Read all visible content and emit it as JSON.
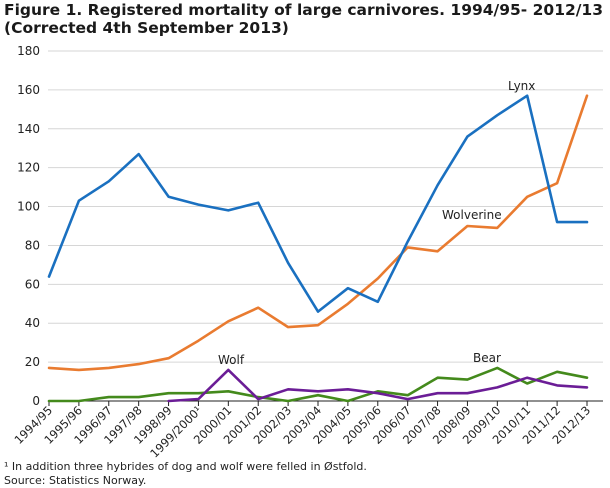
{
  "title_line1": "Figure 1.  Registered mortality of large carnivores. 1994/95- 2012/13",
  "title_line2": "(Corrected 4th September 2013)",
  "footnote": "¹ In addition three hybrides of dog and wolf were felled in Østfold.",
  "source": "Source: Statistics Norway.",
  "chart_data": {
    "type": "line",
    "title": "Registered mortality of large carnivores. 1994/95- 2012/13",
    "xlabel": "",
    "ylabel": "",
    "ylim": [
      0,
      180
    ],
    "yticks": [
      0,
      20,
      40,
      60,
      80,
      100,
      120,
      140,
      160,
      180
    ],
    "grid": true,
    "categories": [
      "1994/95",
      "1995/96",
      "1996/97",
      "1997/98",
      "1998/99",
      "1999/2000¹",
      "2000/01",
      "2001/02",
      "2002/03",
      "2003/04",
      "2004/05",
      "2005/06",
      "2006/07",
      "2007/08",
      "2008/09",
      "2009/10",
      "2010/11",
      "2011/12",
      "2012/13"
    ],
    "series": [
      {
        "name": "Lynx",
        "color": "#1a70c0",
        "values": [
          64,
          103,
          113,
          127,
          105,
          101,
          98,
          102,
          71,
          46,
          58,
          51,
          82,
          111,
          136,
          147,
          157,
          92,
          92
        ]
      },
      {
        "name": "Wolverine",
        "color": "#e97b30",
        "values": [
          17,
          16,
          17,
          19,
          22,
          31,
          41,
          48,
          38,
          39,
          50,
          63,
          79,
          77,
          90,
          89,
          105,
          112,
          157
        ]
      },
      {
        "name": "Bear",
        "color": "#448a1c",
        "values": [
          0,
          0,
          2,
          2,
          4,
          4,
          5,
          2,
          0,
          3,
          0,
          5,
          3,
          12,
          11,
          17,
          9,
          15,
          12
        ]
      },
      {
        "name": "Wolf",
        "color": "#6b1d96",
        "values": [
          null,
          null,
          null,
          null,
          0,
          1,
          16,
          1,
          6,
          5,
          6,
          4,
          1,
          4,
          4,
          7,
          12,
          8,
          7
        ]
      }
    ]
  }
}
